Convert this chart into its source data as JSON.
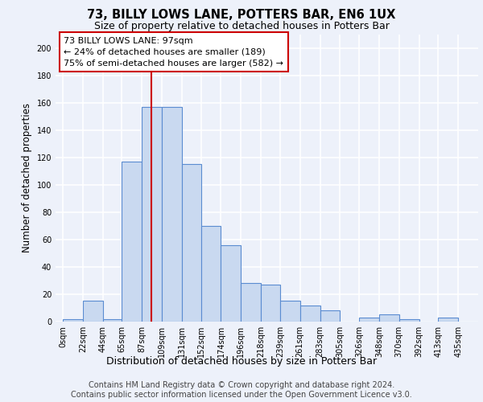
{
  "title": "73, BILLY LOWS LANE, POTTERS BAR, EN6 1UX",
  "subtitle": "Size of property relative to detached houses in Potters Bar",
  "xlabel": "Distribution of detached houses by size in Potters Bar",
  "ylabel": "Number of detached properties",
  "bar_edges": [
    0,
    22,
    44,
    65,
    87,
    109,
    131,
    152,
    174,
    196,
    218,
    239,
    261,
    283,
    305,
    326,
    348,
    370,
    392,
    413,
    435
  ],
  "bar_heights": [
    2,
    15,
    2,
    117,
    157,
    157,
    115,
    70,
    56,
    28,
    27,
    15,
    12,
    8,
    0,
    3,
    5,
    2,
    0,
    3,
    0
  ],
  "bar_color": "#c9d9f0",
  "bar_edgecolor": "#5b8cd1",
  "vline_x": 97,
  "vline_color": "#cc0000",
  "annotation_line1": "73 BILLY LOWS LANE: 97sqm",
  "annotation_line2": "← 24% of detached houses are smaller (189)",
  "annotation_line3": "75% of semi-detached houses are larger (582) →",
  "annotation_box_edgecolor": "#cc0000",
  "ylim": [
    0,
    210
  ],
  "yticks": [
    0,
    20,
    40,
    60,
    80,
    100,
    120,
    140,
    160,
    180,
    200
  ],
  "tick_labels": [
    "0sqm",
    "22sqm",
    "44sqm",
    "65sqm",
    "87sqm",
    "109sqm",
    "131sqm",
    "152sqm",
    "174sqm",
    "196sqm",
    "218sqm",
    "239sqm",
    "261sqm",
    "283sqm",
    "305sqm",
    "326sqm",
    "348sqm",
    "370sqm",
    "392sqm",
    "413sqm",
    "435sqm"
  ],
  "footer_line1": "Contains HM Land Registry data © Crown copyright and database right 2024.",
  "footer_line2": "Contains public sector information licensed under the Open Government Licence v3.0.",
  "bg_color": "#edf1fa",
  "grid_color": "white",
  "title_fontsize": 10.5,
  "subtitle_fontsize": 9,
  "ylabel_fontsize": 8.5,
  "xlabel_fontsize": 9,
  "tick_fontsize": 7,
  "annot_fontsize": 8,
  "footer_fontsize": 7
}
